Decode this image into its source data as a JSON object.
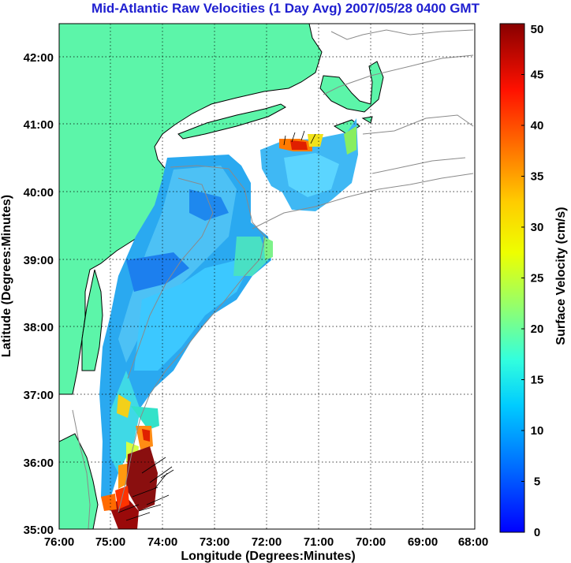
{
  "title": "Mid-Atlantic Raw Velocities (1 Day Avg) 2007/05/28 0400 GMT",
  "chart_data": {
    "type": "heatmap",
    "title": "Mid-Atlantic Raw Velocities (1 Day Avg) 2007/05/28 0400 GMT",
    "xlabel": "Longitude (Degrees:Minutes)",
    "ylabel": "Latitude (Degrees:Minutes)",
    "x_ticks": [
      "76:00",
      "75:00",
      "74:00",
      "73:00",
      "72:00",
      "71:00",
      "70:00",
      "69:00",
      "68:00"
    ],
    "y_ticks": [
      "42:00",
      "41:00",
      "40:00",
      "39:00",
      "38:00",
      "37:00",
      "36:00",
      "35:00"
    ],
    "xlim": [
      -76,
      -68
    ],
    "ylim": [
      35,
      42.5
    ],
    "grid": true,
    "colorbar": {
      "label": "Surface Velocity (cm/s)",
      "ticks": [
        0,
        5,
        10,
        15,
        20,
        25,
        30,
        35,
        40,
        45,
        50
      ],
      "range": [
        0,
        50
      ],
      "colormap": "jet"
    },
    "land_color": "#5cf5a9",
    "coast_color": "#000000",
    "bathymetry_color": "#8a8a8a"
  }
}
